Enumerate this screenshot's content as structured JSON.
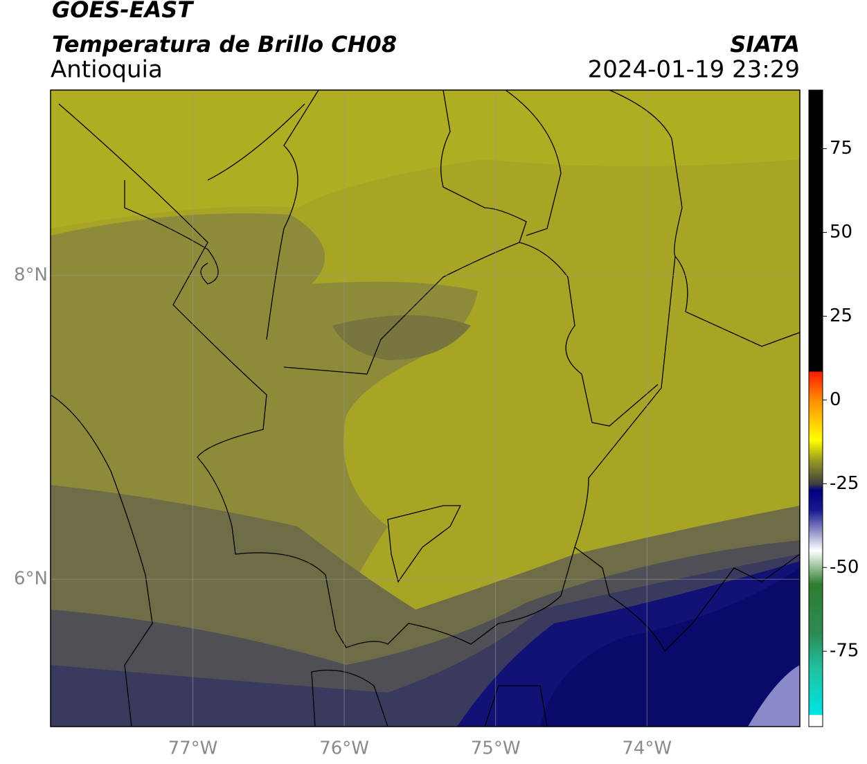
{
  "header": {
    "title": "GOES-EAST",
    "subtitle": "Temperatura de Brillo CH08",
    "region": "Antioquia",
    "source": "SIATA",
    "datetime": "2024-01-19 23:29"
  },
  "map": {
    "xlim": [
      -77.94,
      -72.99
    ],
    "ylim": [
      5.03,
      9.22
    ],
    "xticks": [
      {
        "value": -77,
        "label": "77°W"
      },
      {
        "value": -76,
        "label": "76°W"
      },
      {
        "value": -75,
        "label": "75°W"
      },
      {
        "value": -74,
        "label": "74°W"
      }
    ],
    "yticks": [
      {
        "value": 8,
        "label": "8°N"
      },
      {
        "value": 6,
        "label": "6°N"
      }
    ],
    "grid": true
  },
  "colorbar": {
    "lim": [
      -97.5,
      92.5
    ],
    "ticks": [
      75,
      50,
      25,
      0,
      -25,
      -50,
      -75
    ],
    "stops": [
      {
        "value": 92.5,
        "color": "#000000"
      },
      {
        "value": 8.5,
        "color": "#000000"
      },
      {
        "value": 8.4,
        "color": "#ff1a00"
      },
      {
        "value": 0,
        "color": "#ff8c00"
      },
      {
        "value": -12,
        "color": "#ffff00"
      },
      {
        "value": -18,
        "color": "#9a9a20"
      },
      {
        "value": -25,
        "color": "#404040"
      },
      {
        "value": -27,
        "color": "#000080"
      },
      {
        "value": -33,
        "color": "#1a1a90"
      },
      {
        "value": -45,
        "color": "#ffffff"
      },
      {
        "value": -55,
        "color": "#2e7d2e"
      },
      {
        "value": -70,
        "color": "#2e8b57"
      },
      {
        "value": -80,
        "color": "#20c0a0"
      },
      {
        "value": -94,
        "color": "#00e5e5"
      },
      {
        "value": -94.1,
        "color": "#ffffff"
      },
      {
        "value": -97.5,
        "color": "#ffffff"
      }
    ]
  }
}
